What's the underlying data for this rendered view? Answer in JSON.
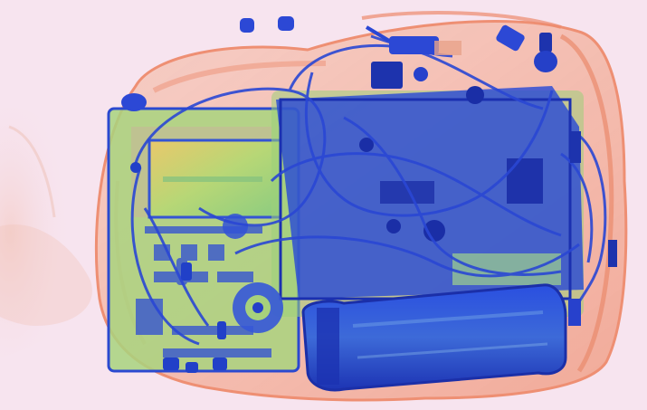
{
  "image": {
    "kind": "x-ray baggage scan",
    "colors": {
      "background": "#f7e4ef",
      "organic": "#f09a7c",
      "mixed": "#9ccf78",
      "metal": "#2446d8",
      "dense": "#1a2fb0",
      "panel": "#e8c86c"
    },
    "objects": [
      "bag-outline",
      "laptop-left-board",
      "laptop-right-board",
      "screen-panel",
      "water-bottle",
      "cables",
      "chargers",
      "small-items"
    ]
  }
}
